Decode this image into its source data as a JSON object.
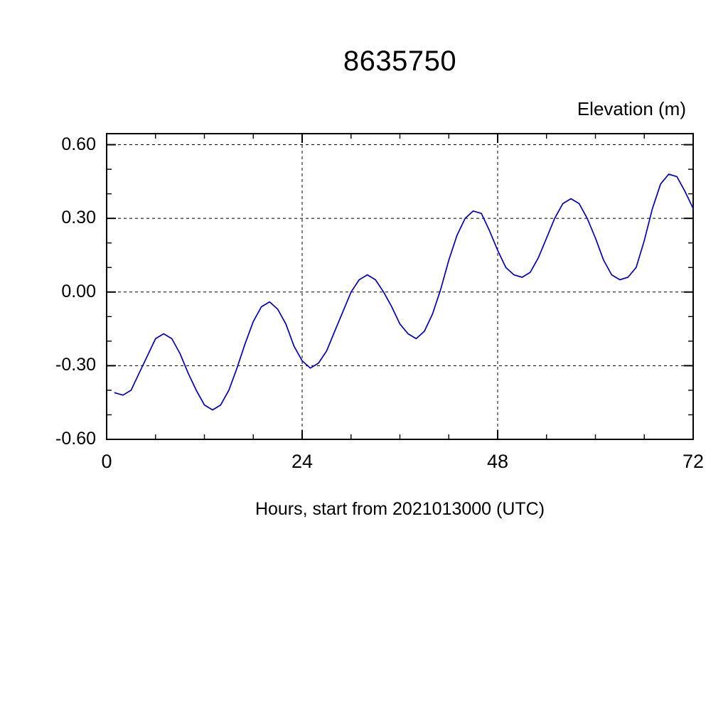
{
  "page": {
    "background": "#ffffff"
  },
  "chart_data": {
    "type": "line",
    "title": "8635750",
    "ylabel": "Elevation (m)",
    "xlabel": "Hours, start from 2021013000 (UTC)",
    "xlim": [
      0,
      72
    ],
    "ylim": [
      -0.6,
      0.645
    ],
    "xticks": {
      "major": [
        0,
        24,
        48,
        72
      ],
      "labels": [
        "0",
        "24",
        "48",
        "72"
      ],
      "minor_step": 6
    },
    "yticks": {
      "major": [
        -0.6,
        -0.3,
        0.0,
        0.3,
        0.6
      ],
      "labels": [
        "-0.60",
        "-0.30",
        "0.00",
        "0.30",
        "0.60"
      ],
      "minor_step": 0.1
    },
    "grid": {
      "x": [
        24,
        48
      ],
      "y": [
        -0.3,
        0.0,
        0.3,
        0.6
      ],
      "style": "dashed"
    },
    "frame_color": "#000000",
    "series": [
      {
        "name": "elevation",
        "color": "#0000cc",
        "x": [
          1,
          2,
          3,
          4,
          5,
          6,
          7,
          8,
          9,
          10,
          11,
          12,
          13,
          14,
          15,
          16,
          17,
          18,
          19,
          20,
          21,
          22,
          23,
          24,
          25,
          26,
          27,
          28,
          29,
          30,
          31,
          32,
          33,
          34,
          35,
          36,
          37,
          38,
          39,
          40,
          41,
          42,
          43,
          44,
          45,
          46,
          47,
          48,
          49,
          50,
          51,
          52,
          53,
          54,
          55,
          56,
          57,
          58,
          59,
          60,
          61,
          62,
          63,
          64,
          65,
          66,
          67,
          68,
          69,
          70,
          71,
          72
        ],
        "y": [
          -0.41,
          -0.42,
          -0.4,
          -0.33,
          -0.26,
          -0.19,
          -0.17,
          -0.19,
          -0.25,
          -0.33,
          -0.4,
          -0.46,
          -0.48,
          -0.46,
          -0.4,
          -0.31,
          -0.21,
          -0.12,
          -0.06,
          -0.04,
          -0.07,
          -0.13,
          -0.22,
          -0.28,
          -0.31,
          -0.29,
          -0.24,
          -0.16,
          -0.08,
          0.0,
          0.05,
          0.07,
          0.05,
          0.0,
          -0.06,
          -0.13,
          -0.17,
          -0.19,
          -0.16,
          -0.09,
          0.01,
          0.13,
          0.23,
          0.3,
          0.33,
          0.32,
          0.25,
          0.17,
          0.1,
          0.07,
          0.06,
          0.08,
          0.14,
          0.22,
          0.3,
          0.36,
          0.38,
          0.36,
          0.3,
          0.22,
          0.13,
          0.07,
          0.05,
          0.06,
          0.1,
          0.21,
          0.34,
          0.44,
          0.48,
          0.47,
          0.41,
          0.34
        ]
      }
    ]
  }
}
